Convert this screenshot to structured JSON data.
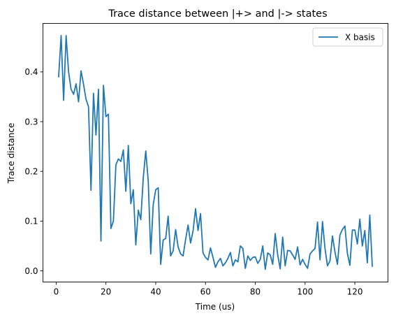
{
  "chart_data": {
    "type": "line",
    "title": "Trace distance between |+> and |-> states",
    "xlabel": "Time (us)",
    "ylabel": "Trace distance",
    "xlim": [
      -5.3,
      133.3
    ],
    "ylim": [
      -0.0225,
      0.4975
    ],
    "xticks": [
      0,
      20,
      40,
      60,
      80,
      100,
      120
    ],
    "yticks": [
      0.0,
      0.1,
      0.2,
      0.3,
      0.4
    ],
    "ytick_labels": [
      "0.0",
      "0.1",
      "0.2",
      "0.3",
      "0.4"
    ],
    "grid": false,
    "legend_position": "top-right",
    "series": [
      {
        "name": "X basis",
        "color": "#1f77b4",
        "x": [
          1,
          2,
          3,
          4,
          5,
          6,
          7,
          8,
          9,
          10,
          11,
          12,
          13,
          14,
          15,
          16,
          17,
          18,
          19,
          20,
          21,
          22,
          23,
          24,
          25,
          26,
          27,
          28,
          29,
          30,
          31,
          32,
          33,
          34,
          35,
          36,
          37,
          38,
          39,
          40,
          41,
          42,
          43,
          44,
          45,
          46,
          47,
          48,
          49,
          50,
          51,
          52,
          53,
          54,
          55,
          56,
          57,
          58,
          59,
          60,
          61,
          62,
          63,
          64,
          65,
          66,
          67,
          68,
          69,
          70,
          71,
          72,
          73,
          74,
          75,
          76,
          77,
          78,
          79,
          80,
          81,
          82,
          83,
          84,
          85,
          86,
          87,
          88,
          89,
          90,
          91,
          92,
          93,
          94,
          95,
          96,
          97,
          98,
          99,
          100,
          101,
          102,
          103,
          104,
          105,
          106,
          107,
          108,
          109,
          110,
          111,
          112,
          113,
          114,
          115,
          116,
          117,
          118,
          119,
          120,
          121,
          122,
          123,
          124,
          125,
          126,
          127
        ],
        "y": [
          0.39,
          0.473,
          0.343,
          0.473,
          0.4,
          0.365,
          0.355,
          0.376,
          0.34,
          0.402,
          0.375,
          0.345,
          0.33,
          0.162,
          0.357,
          0.273,
          0.365,
          0.06,
          0.373,
          0.31,
          0.315,
          0.085,
          0.1,
          0.213,
          0.225,
          0.22,
          0.243,
          0.16,
          0.252,
          0.135,
          0.163,
          0.052,
          0.122,
          0.103,
          0.187,
          0.241,
          0.18,
          0.034,
          0.133,
          0.163,
          0.167,
          0.013,
          0.062,
          0.065,
          0.11,
          0.03,
          0.04,
          0.083,
          0.048,
          0.034,
          0.03,
          0.063,
          0.092,
          0.056,
          0.08,
          0.125,
          0.081,
          0.115,
          0.036,
          0.027,
          0.022,
          0.046,
          0.027,
          0.007,
          0.018,
          0.025,
          0.01,
          0.016,
          0.025,
          0.037,
          0.01,
          0.022,
          0.018,
          0.05,
          0.045,
          0.005,
          0.03,
          0.021,
          0.027,
          0.028,
          0.015,
          0.023,
          0.05,
          0.003,
          0.036,
          0.032,
          0.013,
          0.075,
          0.032,
          0.004,
          0.068,
          0.01,
          0.041,
          0.04,
          0.032,
          0.023,
          0.048,
          0.012,
          0.023,
          0.013,
          0.005,
          0.034,
          0.04,
          0.045,
          0.098,
          0.022,
          0.099,
          0.045,
          0.01,
          0.02,
          0.07,
          0.038,
          0.013,
          0.072,
          0.083,
          0.09,
          0.035,
          0.011,
          0.082,
          0.082,
          0.054,
          0.104,
          0.05,
          0.081,
          0.016,
          0.112,
          0.009
        ]
      }
    ]
  }
}
